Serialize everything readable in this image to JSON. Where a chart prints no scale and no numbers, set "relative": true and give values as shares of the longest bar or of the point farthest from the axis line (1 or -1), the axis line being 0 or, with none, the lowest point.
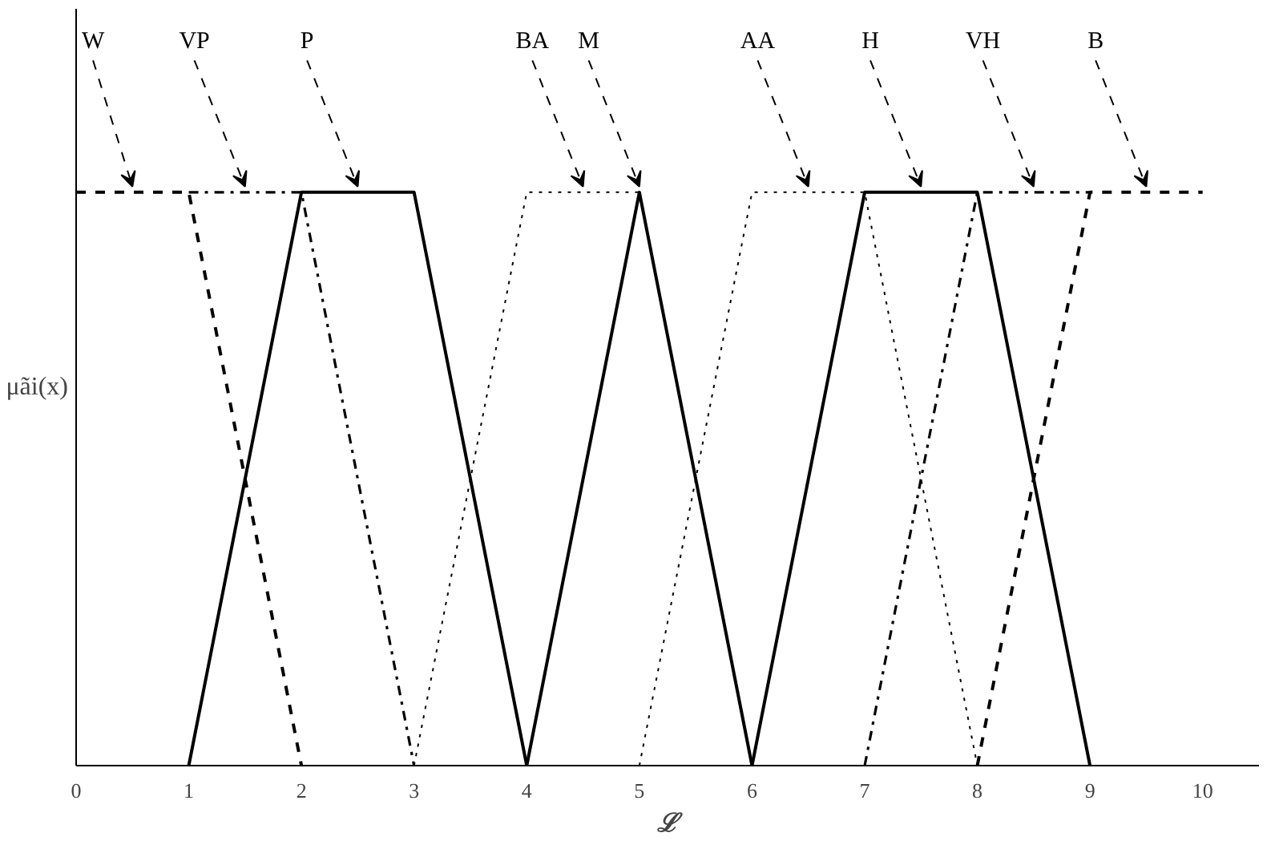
{
  "chart_data": {
    "type": "line",
    "xlabel": "ℒ",
    "ylabel": "μãi(x)",
    "relative": true,
    "xlim": [
      0,
      10.5
    ],
    "xticks": [
      0,
      1,
      2,
      3,
      4,
      5,
      6,
      7,
      8,
      9,
      10
    ],
    "tick_labels": "x",
    "grid": false,
    "marker": "none",
    "series": [
      {
        "name": "W",
        "color": "#000000",
        "line_style": "dashed",
        "x": [
          0,
          1,
          2
        ],
        "values": [
          1,
          1,
          0
        ]
      },
      {
        "name": "VP",
        "color": "#000000",
        "line_style": "dashdot",
        "x": [
          1,
          2,
          3
        ],
        "values": [
          1,
          1,
          0
        ]
      },
      {
        "name": "P",
        "color": "#000000",
        "line_style": "solid",
        "x": [
          1,
          2,
          3,
          4
        ],
        "values": [
          0,
          1,
          1,
          0
        ]
      },
      {
        "name": "BA",
        "color": "#000000",
        "line_style": "dotted",
        "x": [
          3,
          4,
          5,
          6
        ],
        "values": [
          0,
          1,
          1,
          0
        ]
      },
      {
        "name": "M",
        "color": "#000000",
        "line_style": "solid",
        "x": [
          4,
          5,
          6
        ],
        "values": [
          0,
          1,
          0
        ]
      },
      {
        "name": "AA",
        "color": "#000000",
        "line_style": "dotted",
        "x": [
          5,
          6,
          7,
          8
        ],
        "values": [
          0,
          1,
          1,
          0
        ]
      },
      {
        "name": "H",
        "color": "#000000",
        "line_style": "solid",
        "x": [
          6,
          7,
          8,
          9
        ],
        "values": [
          0,
          1,
          1,
          0
        ]
      },
      {
        "name": "VH",
        "color": "#000000",
        "line_style": "dashdot",
        "x": [
          7,
          8,
          9
        ],
        "values": [
          0,
          1,
          1
        ]
      },
      {
        "name": "B",
        "color": "#000000",
        "line_style": "dashed",
        "x": [
          8,
          9,
          10
        ],
        "values": [
          0,
          1,
          1
        ]
      }
    ]
  }
}
